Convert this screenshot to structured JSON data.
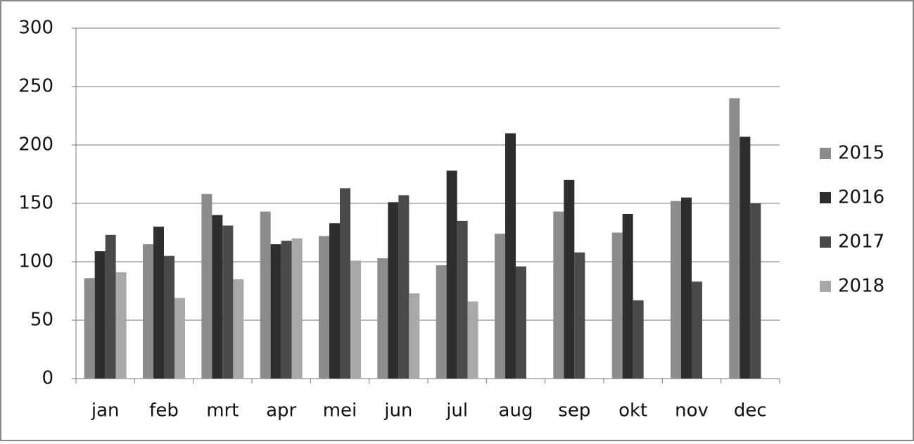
{
  "chart_data": {
    "type": "bar",
    "categories": [
      "jan",
      "feb",
      "mrt",
      "apr",
      "mei",
      "jun",
      "jul",
      "aug",
      "sep",
      "okt",
      "nov",
      "dec"
    ],
    "series": [
      {
        "name": "2015",
        "color": "#8c8c8c",
        "values": [
          86,
          115,
          158,
          143,
          122,
          103,
          97,
          124,
          143,
          125,
          152,
          240
        ]
      },
      {
        "name": "2016",
        "color": "#2e2e2e",
        "values": [
          109,
          130,
          140,
          115,
          133,
          151,
          178,
          210,
          170,
          141,
          155,
          207
        ]
      },
      {
        "name": "2017",
        "color": "#4a4a4a",
        "values": [
          123,
          105,
          131,
          118,
          163,
          157,
          135,
          96,
          108,
          67,
          83,
          150
        ]
      },
      {
        "name": "2018",
        "color": "#a8a8a8",
        "values": [
          91,
          69,
          85,
          120,
          101,
          73,
          66,
          null,
          null,
          null,
          null,
          null
        ]
      }
    ],
    "ylim": [
      0,
      300
    ],
    "yticks": [
      0,
      50,
      100,
      150,
      200,
      250,
      300
    ],
    "grid": true,
    "legend": "right"
  }
}
